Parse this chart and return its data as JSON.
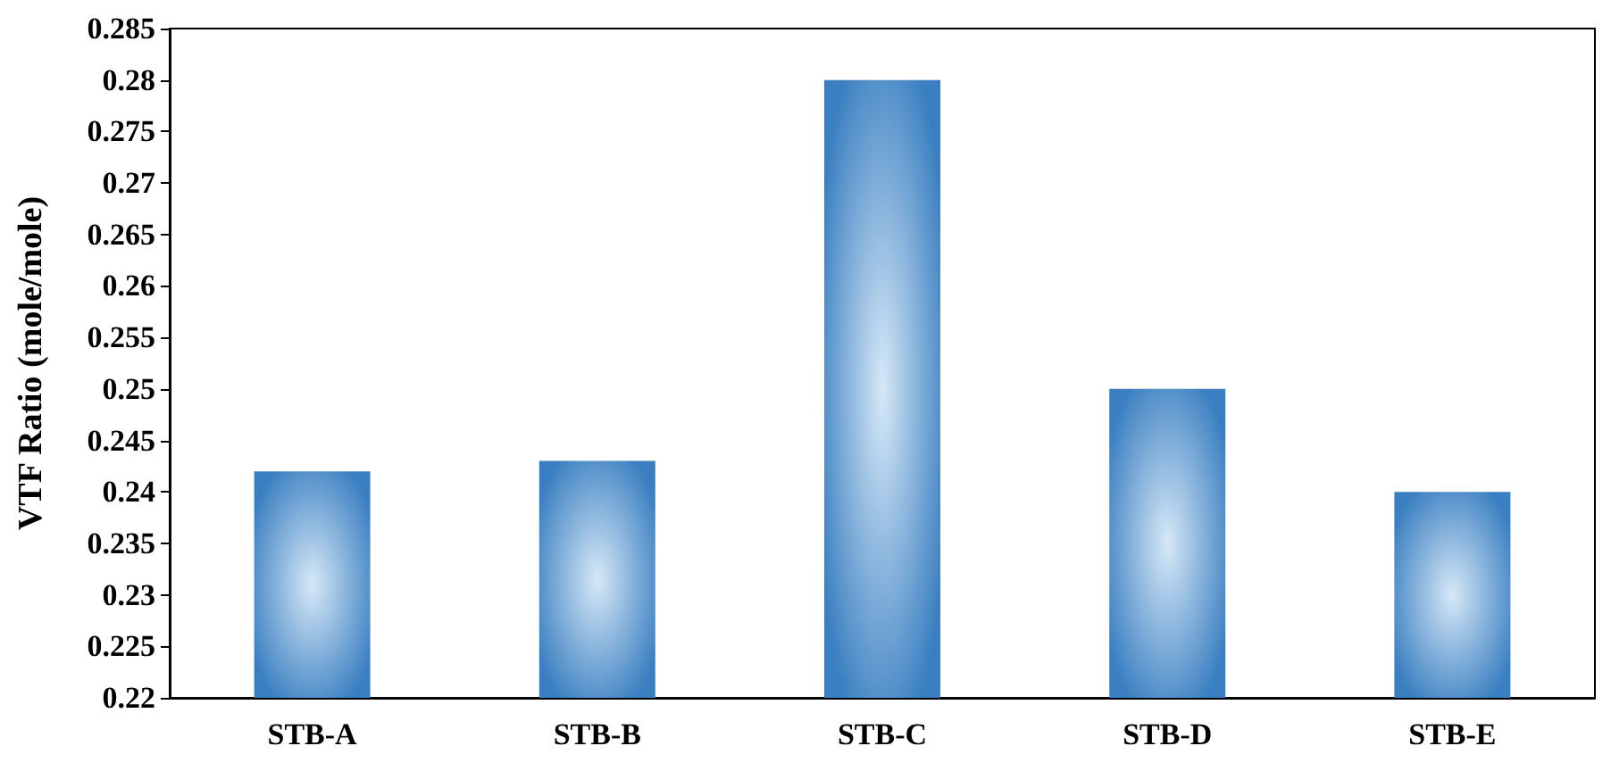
{
  "chart_data": {
    "type": "bar",
    "ylabel": "VTF Ratio (mole/mole)",
    "categories": [
      "STB-A",
      "STB-B",
      "STB-C",
      "STB-D",
      "STB-E"
    ],
    "values": [
      0.242,
      0.243,
      0.28,
      0.25,
      0.24
    ],
    "color": "#3a7fc1",
    "ylim": [
      0.22,
      0.285
    ],
    "yticks": [
      0.22,
      0.225,
      0.23,
      0.235,
      0.24,
      0.245,
      0.25,
      0.255,
      0.26,
      0.265,
      0.27,
      0.275,
      0.28,
      0.285
    ],
    "grid": false
  }
}
